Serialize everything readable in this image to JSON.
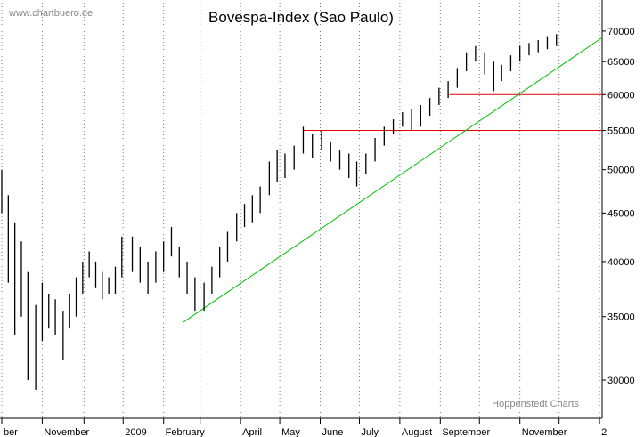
{
  "chart_data": {
    "type": "hilo",
    "title": "Bovespa-Index (Sao Paulo)",
    "source": "www.chartbuero.de",
    "credit": "Hoppenstedt Charts",
    "log_y": true,
    "grid": "x",
    "xlim": [
      0,
      460
    ],
    "ylim": [
      27340,
      75000
    ],
    "xticks": [
      {
        "value": 0,
        "label": "ber"
      },
      {
        "value": 31,
        "label": "November"
      },
      {
        "value": 63,
        "label": null
      },
      {
        "value": 93,
        "label": "2009"
      },
      {
        "value": 124,
        "label": "February"
      },
      {
        "value": 152,
        "label": null
      },
      {
        "value": 183,
        "label": "April"
      },
      {
        "value": 213,
        "label": "May"
      },
      {
        "value": 244,
        "label": "June"
      },
      {
        "value": 274,
        "label": "July"
      },
      {
        "value": 305,
        "label": "August"
      },
      {
        "value": 336,
        "label": "September"
      },
      {
        "value": 366,
        "label": null
      },
      {
        "value": 397,
        "label": "November"
      },
      {
        "value": 427,
        "label": null
      },
      {
        "value": 458,
        "label": "2"
      }
    ],
    "yticks": [
      30000,
      35000,
      40000,
      45000,
      50000,
      55000,
      60000,
      65000,
      70000
    ],
    "series": [
      {
        "color": "#000000",
        "x": [
          0,
          5,
          10,
          15,
          20,
          26,
          31,
          36,
          41,
          47,
          52,
          57,
          62,
          67,
          72,
          77,
          82,
          87,
          92,
          100,
          106,
          112,
          118,
          124,
          130,
          136,
          142,
          148,
          155,
          161,
          167,
          173,
          180,
          186,
          192,
          198,
          205,
          211,
          217,
          224,
          231,
          238,
          245,
          252,
          259,
          266,
          272,
          279,
          286,
          293,
          300,
          307,
          314,
          321,
          328,
          335,
          342,
          349,
          356,
          363,
          370,
          377,
          383,
          390,
          397,
          404,
          411,
          418,
          425
        ],
        "high": [
          50000,
          47000,
          44000,
          42000,
          39000,
          36000,
          38000,
          37000,
          36500,
          35500,
          37000,
          38500,
          40000,
          41000,
          40000,
          39000,
          38500,
          39500,
          42500,
          42500,
          41500,
          40000,
          41000,
          42000,
          43500,
          41500,
          40000,
          38500,
          38000,
          39500,
          41500,
          43000,
          45000,
          46000,
          47000,
          48000,
          51000,
          52500,
          52000,
          53000,
          55500,
          54500,
          55000,
          53500,
          52500,
          52000,
          51000,
          52000,
          54000,
          55500,
          56500,
          57500,
          58000,
          58500,
          59500,
          61000,
          62000,
          64000,
          66500,
          67500,
          66500,
          65000,
          64500,
          66000,
          67500,
          68000,
          68500,
          69000,
          69500
        ],
        "low": [
          45000,
          38000,
          33500,
          35000,
          30000,
          29300,
          33000,
          34000,
          33500,
          31500,
          34000,
          35000,
          37000,
          38500,
          37500,
          36500,
          37000,
          37000,
          38500,
          39000,
          38000,
          37000,
          38000,
          39000,
          40500,
          38500,
          37000,
          35500,
          35500,
          37000,
          38500,
          40000,
          42000,
          43500,
          44000,
          45000,
          47000,
          48500,
          49000,
          50000,
          52000,
          51500,
          52500,
          51000,
          50000,
          49000,
          48000,
          49500,
          51000,
          53000,
          54500,
          55500,
          55000,
          55500,
          57000,
          58500,
          59500,
          61000,
          63500,
          65000,
          63000,
          60500,
          62000,
          63500,
          65000,
          66000,
          66500,
          67000,
          67500
        ]
      }
    ],
    "lines": [
      {
        "color": "#e00000",
        "x": [
          231,
          460
        ],
        "y": [
          55000,
          55000
        ]
      },
      {
        "color": "#e00000",
        "x": [
          343,
          460
        ],
        "y": [
          60000,
          60000
        ]
      },
      {
        "color": "#00c000",
        "x": [
          139,
          460
        ],
        "y": [
          34520,
          68900
        ]
      }
    ]
  }
}
